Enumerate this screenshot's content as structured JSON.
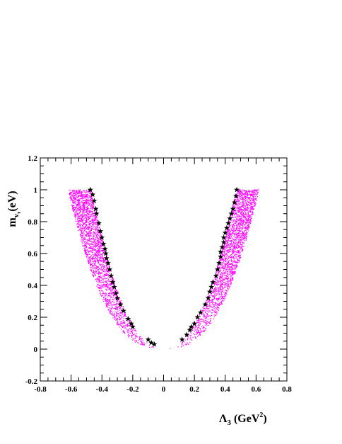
{
  "chart_data": {
    "type": "scatter",
    "title": "",
    "xlabel": {
      "base": "Λ",
      "sub": "3",
      "text": "(GeV",
      "sup": "2",
      "close": ")"
    },
    "ylabel": {
      "base": "m",
      "sub": "ν",
      "subsub": "τ",
      "text": "(eV)"
    },
    "xlim": [
      -0.8,
      0.8
    ],
    "ylim": [
      -0.2,
      1.2
    ],
    "x_ticks": [
      "-0.8",
      "-0.6",
      "-0.4",
      "-0.2",
      "0",
      "0.2",
      "0.4",
      "0.6",
      "0.8"
    ],
    "y_ticks": [
      "-0.2",
      "0",
      "0.2",
      "0.4",
      "0.6",
      "0.8",
      "1",
      "1.2"
    ],
    "grid": false,
    "series": [
      {
        "marker": "dot",
        "color": "#ff00ff",
        "description_points": "dense parabola band",
        "band": {
          "x_min_at_y1": 0.47,
          "x_max_at_y1": 0.62,
          "inner_power": 2.2,
          "outer_power": 2.6,
          "count": 5000
        }
      },
      {
        "marker": "star",
        "color": "#000000",
        "points": [
          [
            -0.475,
            1.0
          ],
          [
            -0.46,
            0.97
          ],
          [
            -0.45,
            0.93
          ],
          [
            -0.44,
            0.88
          ],
          [
            -0.435,
            0.85
          ],
          [
            -0.42,
            0.79
          ],
          [
            -0.41,
            0.74
          ],
          [
            -0.4,
            0.7
          ],
          [
            -0.39,
            0.66
          ],
          [
            -0.38,
            0.63
          ],
          [
            -0.375,
            0.6
          ],
          [
            -0.37,
            0.57
          ],
          [
            -0.36,
            0.54
          ],
          [
            -0.35,
            0.5
          ],
          [
            -0.34,
            0.46
          ],
          [
            -0.33,
            0.42
          ],
          [
            -0.32,
            0.39
          ],
          [
            -0.31,
            0.35
          ],
          [
            -0.3,
            0.32
          ],
          [
            -0.28,
            0.28
          ],
          [
            -0.26,
            0.24
          ],
          [
            -0.23,
            0.19
          ],
          [
            -0.21,
            0.16
          ],
          [
            -0.2,
            0.14
          ],
          [
            -0.1,
            0.06
          ],
          [
            -0.08,
            0.04
          ],
          [
            -0.06,
            0.03
          ],
          [
            0.12,
            0.06
          ],
          [
            0.15,
            0.09
          ],
          [
            0.17,
            0.12
          ],
          [
            0.18,
            0.14
          ],
          [
            0.2,
            0.16
          ],
          [
            0.22,
            0.2
          ],
          [
            0.24,
            0.23
          ],
          [
            0.27,
            0.28
          ],
          [
            0.29,
            0.32
          ],
          [
            0.3,
            0.36
          ],
          [
            0.31,
            0.39
          ],
          [
            0.32,
            0.42
          ],
          [
            0.34,
            0.46
          ],
          [
            0.35,
            0.5
          ],
          [
            0.36,
            0.54
          ],
          [
            0.37,
            0.58
          ],
          [
            0.37,
            0.61
          ],
          [
            0.38,
            0.64
          ],
          [
            0.39,
            0.67
          ],
          [
            0.39,
            0.7
          ],
          [
            0.4,
            0.73
          ],
          [
            0.41,
            0.76
          ],
          [
            0.42,
            0.79
          ],
          [
            0.43,
            0.82
          ],
          [
            0.44,
            0.85
          ],
          [
            0.45,
            0.88
          ],
          [
            0.46,
            0.92
          ],
          [
            0.47,
            0.96
          ],
          [
            0.475,
            1.0
          ]
        ]
      }
    ]
  }
}
